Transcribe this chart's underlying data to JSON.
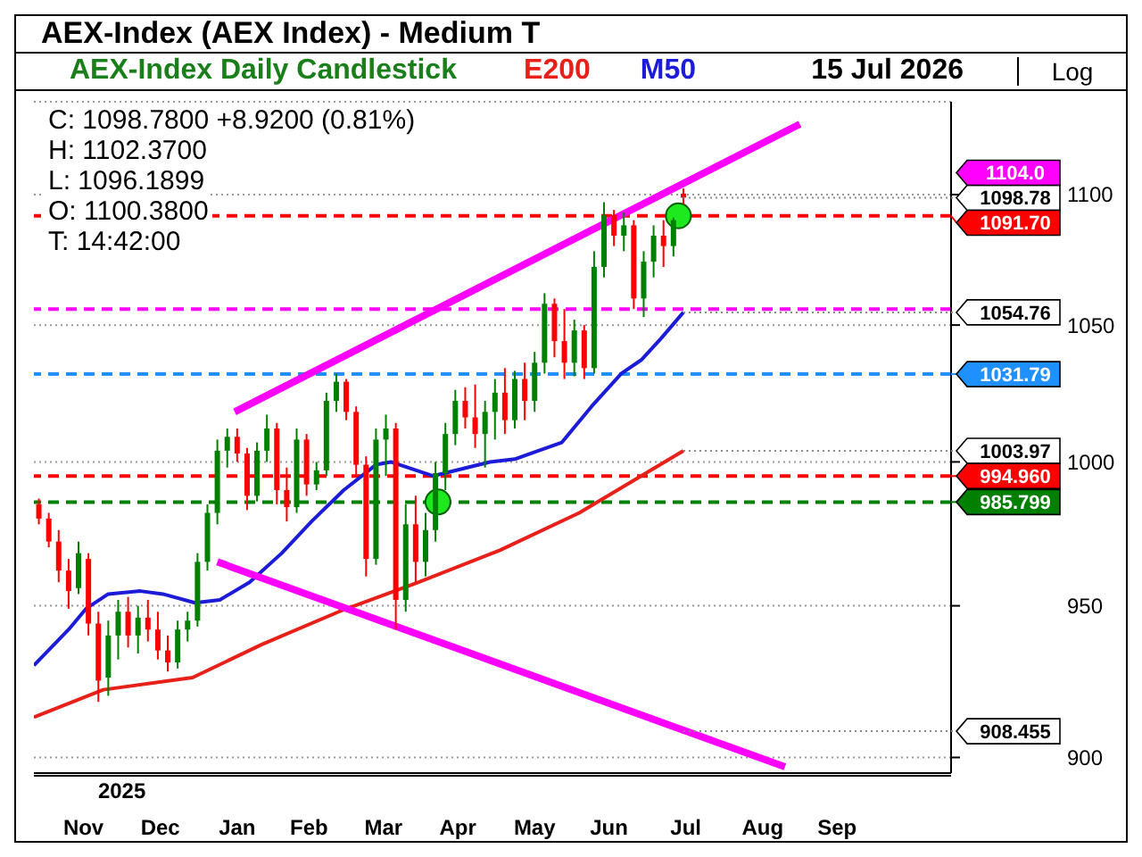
{
  "chart_data": {
    "type": "candlestick",
    "title": "AEX-Index (AEX Index) - Medium T",
    "subtitle": "AEX-Index Daily Candlestick",
    "x": [
      "2025-10-28",
      "2025-11-01",
      "2025-11-05",
      "2025-11-09",
      "2025-11-13",
      "2025-11-17",
      "2025-11-21",
      "2025-11-25",
      "2025-11-29",
      "2025-12-03",
      "2025-12-07",
      "2025-12-11",
      "2025-12-15",
      "2025-12-19",
      "2025-12-23",
      "2025-12-27",
      "2025-12-31",
      "2026-01-04",
      "2026-01-08",
      "2026-01-12",
      "2026-01-16",
      "2026-01-20",
      "2026-01-24",
      "2026-01-28",
      "2026-02-01",
      "2026-02-05",
      "2026-02-09",
      "2026-02-13",
      "2026-02-17",
      "2026-02-21",
      "2026-02-25",
      "2026-03-01",
      "2026-03-05",
      "2026-03-09",
      "2026-03-13",
      "2026-03-17",
      "2026-03-21",
      "2026-03-25",
      "2026-03-29",
      "2026-04-02",
      "2026-04-06",
      "2026-04-10",
      "2026-04-14",
      "2026-04-18",
      "2026-04-22",
      "2026-04-26",
      "2026-04-30",
      "2026-05-04",
      "2026-05-08",
      "2026-05-12",
      "2026-05-16",
      "2026-05-20",
      "2026-05-24",
      "2026-05-28",
      "2026-06-01",
      "2026-06-05",
      "2026-06-09",
      "2026-06-13",
      "2026-06-17",
      "2026-06-21",
      "2026-06-25",
      "2026-06-29",
      "2026-07-03",
      "2026-07-07",
      "2026-07-11",
      "2026-07-15"
    ],
    "ohlc": [
      [
        985,
        987,
        978,
        980
      ],
      [
        980,
        982,
        970,
        972
      ],
      [
        972,
        976,
        958,
        962
      ],
      [
        962,
        966,
        949,
        955
      ],
      [
        956,
        972,
        954,
        968
      ],
      [
        966,
        968,
        940,
        944
      ],
      [
        944,
        948,
        918,
        925
      ],
      [
        926,
        945,
        920,
        940
      ],
      [
        940,
        952,
        932,
        948
      ],
      [
        948,
        953,
        936,
        940
      ],
      [
        940,
        950,
        934,
        946
      ],
      [
        946,
        952,
        938,
        942
      ],
      [
        942,
        948,
        932,
        935
      ],
      [
        935,
        940,
        928,
        931
      ],
      [
        931,
        945,
        929,
        942
      ],
      [
        942,
        948,
        938,
        945
      ],
      [
        945,
        968,
        943,
        965
      ],
      [
        965,
        985,
        962,
        982
      ],
      [
        982,
        1008,
        978,
        1004
      ],
      [
        1004,
        1012,
        998,
        1009
      ],
      [
        1009,
        1012,
        1000,
        1003
      ],
      [
        1003,
        1005,
        983,
        988
      ],
      [
        988,
        1007,
        986,
        1004
      ],
      [
        1004,
        1017,
        1000,
        1012
      ],
      [
        1012,
        1014,
        985,
        990
      ],
      [
        990,
        998,
        979,
        984
      ],
      [
        984,
        1012,
        982,
        1008
      ],
      [
        1008,
        1010,
        988,
        992
      ],
      [
        992,
        1000,
        990,
        997
      ],
      [
        997,
        1025,
        995,
        1022
      ],
      [
        1022,
        1032,
        1018,
        1029
      ],
      [
        1029,
        1030,
        1015,
        1018
      ],
      [
        1018,
        1020,
        995,
        999
      ],
      [
        999,
        1002,
        960,
        966
      ],
      [
        966,
        1012,
        964,
        1008
      ],
      [
        1008,
        1017,
        995,
        1012
      ],
      [
        1012,
        1014,
        942,
        952
      ],
      [
        952,
        985,
        948,
        978
      ],
      [
        978,
        988,
        958,
        965
      ],
      [
        965,
        982,
        960,
        976
      ],
      [
        976,
        1000,
        972,
        996
      ],
      [
        996,
        1014,
        990,
        1010
      ],
      [
        1010,
        1026,
        1006,
        1022
      ],
      [
        1022,
        1027,
        1012,
        1016
      ],
      [
        1016,
        1028,
        1005,
        1010
      ],
      [
        1010,
        1022,
        998,
        1018
      ],
      [
        1018,
        1030,
        1008,
        1025
      ],
      [
        1025,
        1034,
        1010,
        1015
      ],
      [
        1015,
        1033,
        1012,
        1030
      ],
      [
        1030,
        1036,
        1015,
        1022
      ],
      [
        1022,
        1040,
        1018,
        1036
      ],
      [
        1036,
        1062,
        1032,
        1058
      ],
      [
        1058,
        1060,
        1038,
        1044
      ],
      [
        1044,
        1056,
        1030,
        1036
      ],
      [
        1036,
        1052,
        1031,
        1048
      ],
      [
        1048,
        1050,
        1030,
        1034
      ],
      [
        1034,
        1078,
        1032,
        1072
      ],
      [
        1072,
        1097,
        1068,
        1092
      ],
      [
        1092,
        1094,
        1080,
        1084
      ],
      [
        1084,
        1093,
        1078,
        1088
      ],
      [
        1088,
        1090,
        1056,
        1060
      ],
      [
        1060,
        1078,
        1053,
        1074
      ],
      [
        1074,
        1088,
        1068,
        1084
      ],
      [
        1084,
        1090,
        1072,
        1080
      ],
      [
        1080,
        1091,
        1076,
        1090
      ],
      [
        1100.38,
        1102.37,
        1096.19,
        1098.78
      ]
    ],
    "series": [
      {
        "name": "E200",
        "type": "line",
        "color": "#e8201a",
        "x": [
          "2025-10-26",
          "2025-11-23",
          "2025-12-29",
          "2026-01-26",
          "2026-02-26",
          "2026-03-30",
          "2026-05-02",
          "2026-06-03",
          "2026-07-15"
        ],
        "values": [
          913,
          922,
          926,
          937,
          948,
          958,
          969,
          982,
          1003.97
        ]
      },
      {
        "name": "M50",
        "type": "line",
        "color": "#1c1cd8",
        "x": [
          "2025-10-26",
          "2025-11-09",
          "2025-11-16",
          "2025-11-25",
          "2025-12-08",
          "2025-12-17",
          "2025-12-30",
          "2026-01-09",
          "2026-01-21",
          "2026-02-03",
          "2026-02-15",
          "2026-02-28",
          "2026-03-13",
          "2026-03-19",
          "2026-04-05",
          "2026-04-28",
          "2026-05-08",
          "2026-05-27",
          "2026-06-08",
          "2026-06-20",
          "2026-06-28",
          "2026-07-06",
          "2026-07-15"
        ],
        "values": [
          930,
          942,
          949,
          954,
          955,
          954,
          951,
          952,
          958,
          968,
          979,
          990,
          999,
          1000,
          995,
          1000,
          1001,
          1007,
          1020,
          1032,
          1037,
          1045,
          1054.76
        ]
      },
      {
        "type": "line",
        "color": "#ff00ff",
        "x": [
          "2026-01-15",
          "2026-08-31"
        ],
        "values": [
          1018,
          1128
        ]
      },
      {
        "type": "line",
        "color": "#ff00ff",
        "x": [
          "2026-01-08",
          "2026-08-25"
        ],
        "values": [
          965,
          897
        ]
      },
      {
        "type": "scatter",
        "color": "#1ee81e",
        "marker": "circle",
        "x": [
          "2026-04-07",
          "2026-07-13"
        ],
        "values": [
          985.8,
          1091.7
        ]
      }
    ],
    "xlim": [
      "2025-10-26",
      "2026-10-31"
    ],
    "xticks": [
      {
        "value": "2025-11-15",
        "label": "Nov"
      },
      {
        "value": "2025-12-16",
        "label": "Dec"
      },
      {
        "value": "2026-01-16",
        "label": "Jan"
      },
      {
        "value": "2026-02-14",
        "label": "Feb"
      },
      {
        "value": "2026-03-16",
        "label": "Mar"
      },
      {
        "value": "2026-04-15",
        "label": "Apr"
      },
      {
        "value": "2026-05-16",
        "label": "May"
      },
      {
        "value": "2026-06-15",
        "label": "Jun"
      },
      {
        "value": "2026-07-16",
        "label": "Jul"
      },
      {
        "value": "2026-08-16",
        "label": "Aug"
      },
      {
        "value": "2026-09-15",
        "label": "Sep"
      }
    ],
    "ylim": [
      895,
      1137
    ],
    "yticks": [
      900,
      950,
      1000,
      1050,
      1100
    ],
    "log": true,
    "grid": "y",
    "legend": "top",
    "ref_lines": [
      {
        "axis": "y",
        "value": 1091.7,
        "label": "1091.70",
        "color": "#ff0000",
        "line_style": "dashed"
      },
      {
        "axis": "y",
        "value": 1056,
        "color": "#ff00ff",
        "line_style": "dashed"
      },
      {
        "axis": "y",
        "value": 1031.79,
        "label": "1031.79",
        "color": "#1e90ff",
        "line_style": "dashed"
      },
      {
        "axis": "y",
        "value": 994.96,
        "label": "994.960",
        "color": "#ff0000",
        "line_style": "dashed"
      },
      {
        "axis": "y",
        "value": 985.799,
        "label": "985.799",
        "color": "#008000",
        "line_style": "dashed"
      }
    ],
    "annotations": [
      "15 Jul 2026",
      "Log",
      "2025",
      "C: 1098.7800 +8.9200 (0.81%)",
      "H: 1102.3700",
      "L: 1096.1899",
      "O: 1100.3800",
      "T: 14:42:00",
      "1104.0",
      {
        "text": "1098.78",
        "x": "2026-07-15",
        "y": 1098.78
      },
      {
        "text": "1054.76",
        "x": "2026-07-15",
        "y": 1054.76
      },
      {
        "text": "1003.97",
        "x": "2026-07-15",
        "y": 1003.97
      },
      {
        "text": "908.455",
        "x": "2026-07-15",
        "y": 908.455
      }
    ]
  }
}
